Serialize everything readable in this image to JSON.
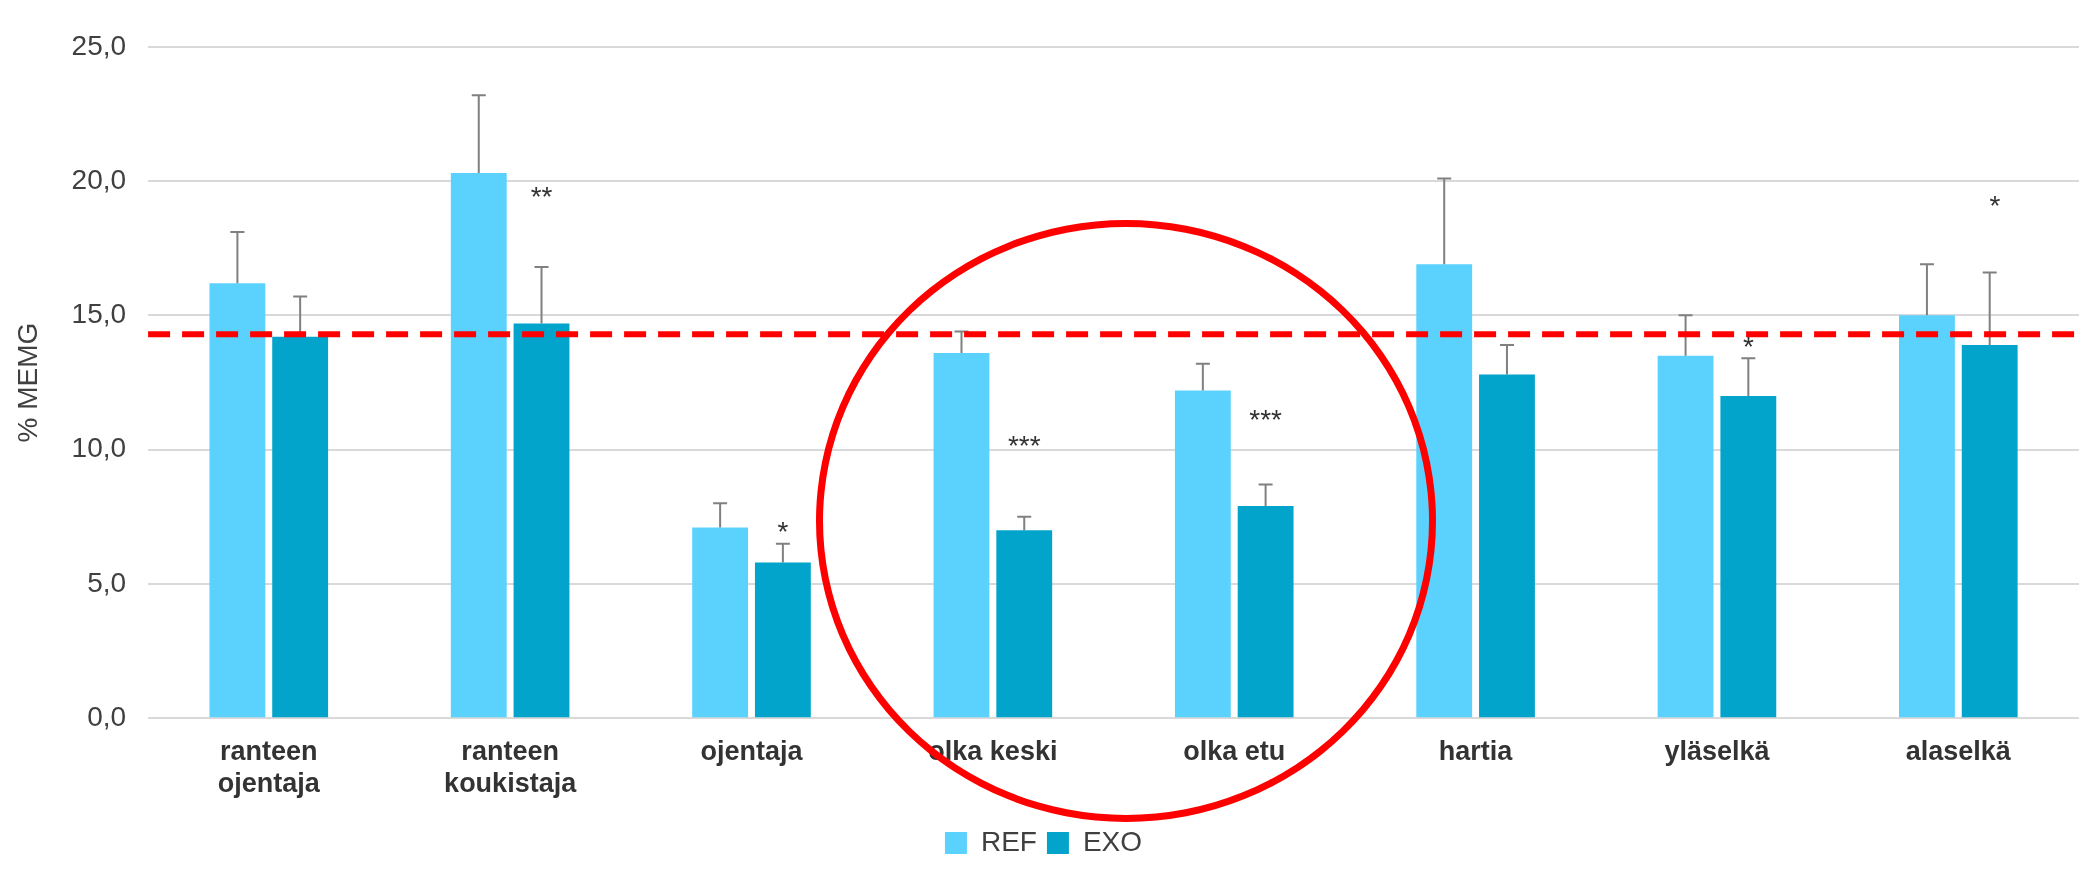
{
  "chart_data": {
    "type": "bar",
    "ylabel": "% MEMG",
    "categories": [
      "ranteen\nojentaja",
      "ranteen\nkoukistaja",
      "ojentaja",
      "olka keski",
      "olka etu",
      "hartia",
      "yläselkä",
      "alaselkä"
    ],
    "series": [
      {
        "name": "REF",
        "color": "#5bd2fe",
        "values": [
          16.2,
          20.3,
          7.1,
          13.6,
          12.2,
          16.9,
          13.5,
          15.0
        ],
        "errors": [
          [
            16.2,
            18.1
          ],
          [
            20.3,
            23.2
          ],
          [
            7.1,
            8.0
          ],
          [
            13.6,
            14.4
          ],
          [
            12.2,
            13.2
          ],
          [
            16.9,
            20.1
          ],
          [
            13.5,
            15.0
          ],
          [
            15.0,
            16.9
          ]
        ]
      },
      {
        "name": "EXO",
        "color": "#03a4cb",
        "values": [
          14.2,
          14.7,
          5.8,
          7.0,
          7.9,
          12.8,
          12.0,
          13.9
        ],
        "errors": [
          [
            14.2,
            15.7
          ],
          [
            14.7,
            16.8
          ],
          [
            5.8,
            6.5
          ],
          [
            7.0,
            7.5
          ],
          [
            7.9,
            8.7
          ],
          [
            12.8,
            13.9
          ],
          [
            12.0,
            13.4
          ],
          [
            13.9,
            16.6
          ]
        ]
      }
    ],
    "ylim": [
      0,
      25
    ],
    "yticks": [
      {
        "value": 0,
        "label": "0,0"
      },
      {
        "value": 5,
        "label": "5,0"
      },
      {
        "value": 10,
        "label": "10,0"
      },
      {
        "value": 15,
        "label": "15,0"
      },
      {
        "value": 20,
        "label": "20,0"
      },
      {
        "value": 25,
        "label": "25,0"
      }
    ],
    "grid": "y",
    "legend": "bottom",
    "ref_lines": [
      {
        "axis": "y",
        "value": 14.3,
        "color": "#ff0000",
        "line_style": "dashed"
      }
    ],
    "annotations": [
      {
        "text": "**",
        "x": "ranteen\nkoukistaja",
        "y": 19.0
      },
      {
        "text": "*",
        "x": "ojentaja",
        "y": 6.5
      },
      {
        "text": "***",
        "x": "olka keski",
        "y": 9.7
      },
      {
        "text": "***",
        "x": "olka etu",
        "y": 10.7
      },
      {
        "text": "*",
        "x": "yläselkä",
        "y": 13.4
      },
      "*"
    ]
  }
}
